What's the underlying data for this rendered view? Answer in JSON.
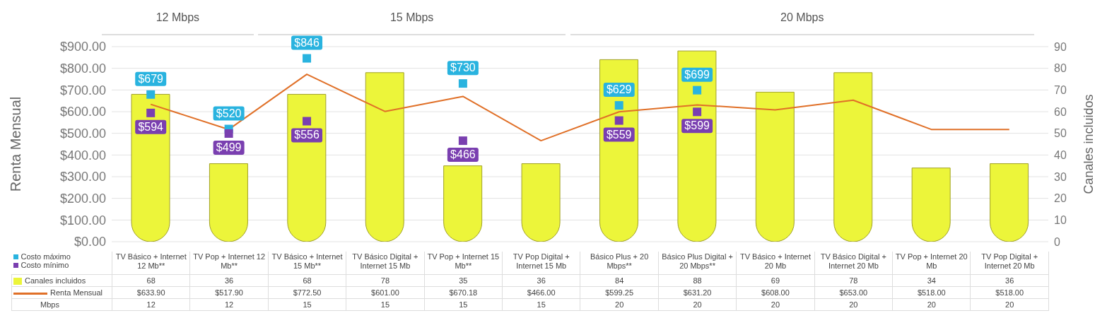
{
  "chart_data": {
    "type": "bar",
    "ylabel": "Renta Mensual",
    "y2label": "Canales incluidos",
    "categories": [
      "TV Básico + Internet 12 Mb**",
      "TV Pop + Internet 12 Mb**",
      "TV Básico + Internet 15 Mb**",
      "TV Básico Digital + Internet 15 Mb",
      "TV Pop + Internet 15 Mb**",
      "TV Pop Digital + Internet 15 Mb",
      "Básico Plus + 20 Mbps**",
      "Básico Plus Digital + 20 Mbps**",
      "TV Básico + Internet 20 Mb",
      "TV Básico Digital + Internet 20 Mb",
      "TV Pop + Internet 20 Mb",
      "TV Pop Digital + Internet 20 Mb"
    ],
    "series": [
      {
        "name": "Canales incluidos",
        "axis": "y2",
        "color": "#ecf53a",
        "values": [
          68,
          36,
          68,
          78,
          35,
          36,
          84,
          88,
          69,
          78,
          34,
          36
        ],
        "value_labels": [
          "68",
          "36",
          "68",
          "78",
          "35",
          "36",
          "84",
          "88",
          "69",
          "78",
          "34",
          "36"
        ]
      },
      {
        "name": "Renta Mensual",
        "type": "line",
        "axis": "y",
        "color": "#e07028",
        "marker": "none",
        "values": [
          633.9,
          517.9,
          772.5,
          601.0,
          670.18,
          466.0,
          599.25,
          631.2,
          608.0,
          653.0,
          518.0,
          518.0
        ],
        "value_labels": [
          "$633.90",
          "$517.90",
          "$772.50",
          "$601.00",
          "$670.18",
          "$466.00",
          "$599.25",
          "$631.20",
          "$608.00",
          "$653.00",
          "$518.00",
          "$518.00"
        ]
      },
      {
        "name": "Costo máximo",
        "type": "scatter",
        "axis": "y",
        "color": "#29b3df",
        "marker": "square",
        "values": [
          679,
          520,
          846,
          null,
          730,
          null,
          629,
          699,
          null,
          null,
          null,
          null
        ],
        "value_labels": [
          "$679",
          "$520",
          "$846",
          null,
          "$730",
          null,
          "$629",
          "$699",
          null,
          null,
          null,
          null
        ]
      },
      {
        "name": "Costo mínimo",
        "type": "scatter",
        "axis": "y",
        "color": "#7a3fb0",
        "marker": "square",
        "values": [
          594,
          499,
          556,
          null,
          466,
          null,
          559,
          599,
          null,
          null,
          null,
          null
        ],
        "value_labels": [
          "$594",
          "$499",
          "$556",
          null,
          "$466",
          null,
          "$559",
          "$599",
          null,
          null,
          null,
          null
        ]
      }
    ],
    "ylim": [
      0,
      900
    ],
    "yticks": [
      {
        "value": 0,
        "label": "$0.00"
      },
      {
        "value": 100,
        "label": "$100.00"
      },
      {
        "value": 200,
        "label": "$200.00"
      },
      {
        "value": 300,
        "label": "$300.00"
      },
      {
        "value": 400,
        "label": "$400.00"
      },
      {
        "value": 500,
        "label": "$500.00"
      },
      {
        "value": 600,
        "label": "$600.00"
      },
      {
        "value": 700,
        "label": "$700.00"
      },
      {
        "value": 800,
        "label": "$800.00"
      },
      {
        "value": 900,
        "label": "$900.00"
      }
    ],
    "y2lim": [
      0,
      90
    ],
    "y2ticks": [
      0,
      10,
      20,
      30,
      40,
      50,
      60,
      70,
      80,
      90
    ],
    "grid": "y",
    "legend": "bottom left",
    "annotations": [
      "12 Mbps",
      "15 Mbps",
      "20 Mbps",
      "Mbps",
      "12",
      "12",
      "15",
      "15",
      "15",
      "15",
      "20",
      "20",
      "20",
      "20",
      "20",
      "20"
    ]
  }
}
